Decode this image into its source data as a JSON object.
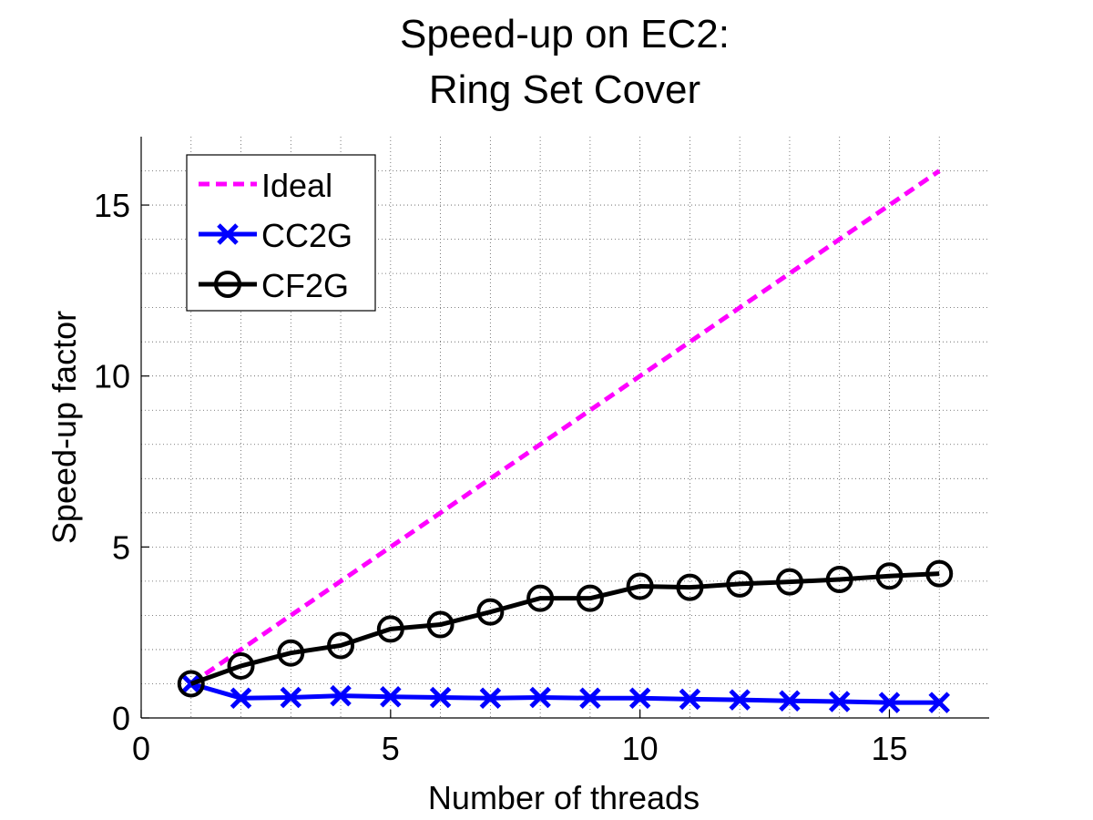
{
  "chart_data": {
    "type": "line",
    "title": [
      "Speed-up on EC2:",
      "Ring Set Cover"
    ],
    "xlabel": "Number of threads",
    "ylabel": "Speed-up factor",
    "xlim": [
      0,
      17
    ],
    "ylim": [
      0,
      17
    ],
    "xticks": [
      0,
      5,
      10,
      15
    ],
    "yticks": [
      0,
      5,
      10,
      15
    ],
    "grid": "on (major and minor, dotted)",
    "legend_position": "top-left",
    "x": [
      1,
      2,
      3,
      4,
      5,
      6,
      7,
      8,
      9,
      10,
      11,
      12,
      13,
      14,
      15,
      16
    ],
    "series": [
      {
        "name": "Ideal",
        "color": "#ff00ff",
        "style": "dashed",
        "marker": "none",
        "x": [
          1,
          16
        ],
        "values": [
          1,
          16
        ]
      },
      {
        "name": "CC2G",
        "color": "#0000ff",
        "style": "solid",
        "marker": "x",
        "values": [
          1.0,
          0.58,
          0.6,
          0.65,
          0.62,
          0.6,
          0.58,
          0.6,
          0.58,
          0.58,
          0.55,
          0.53,
          0.5,
          0.48,
          0.45,
          0.45
        ]
      },
      {
        "name": "CF2G",
        "color": "#000000",
        "style": "solid",
        "marker": "circle",
        "values": [
          1.0,
          1.52,
          1.9,
          2.12,
          2.6,
          2.73,
          3.1,
          3.5,
          3.5,
          3.85,
          3.82,
          3.92,
          3.98,
          4.05,
          4.15,
          4.22
        ]
      }
    ]
  }
}
